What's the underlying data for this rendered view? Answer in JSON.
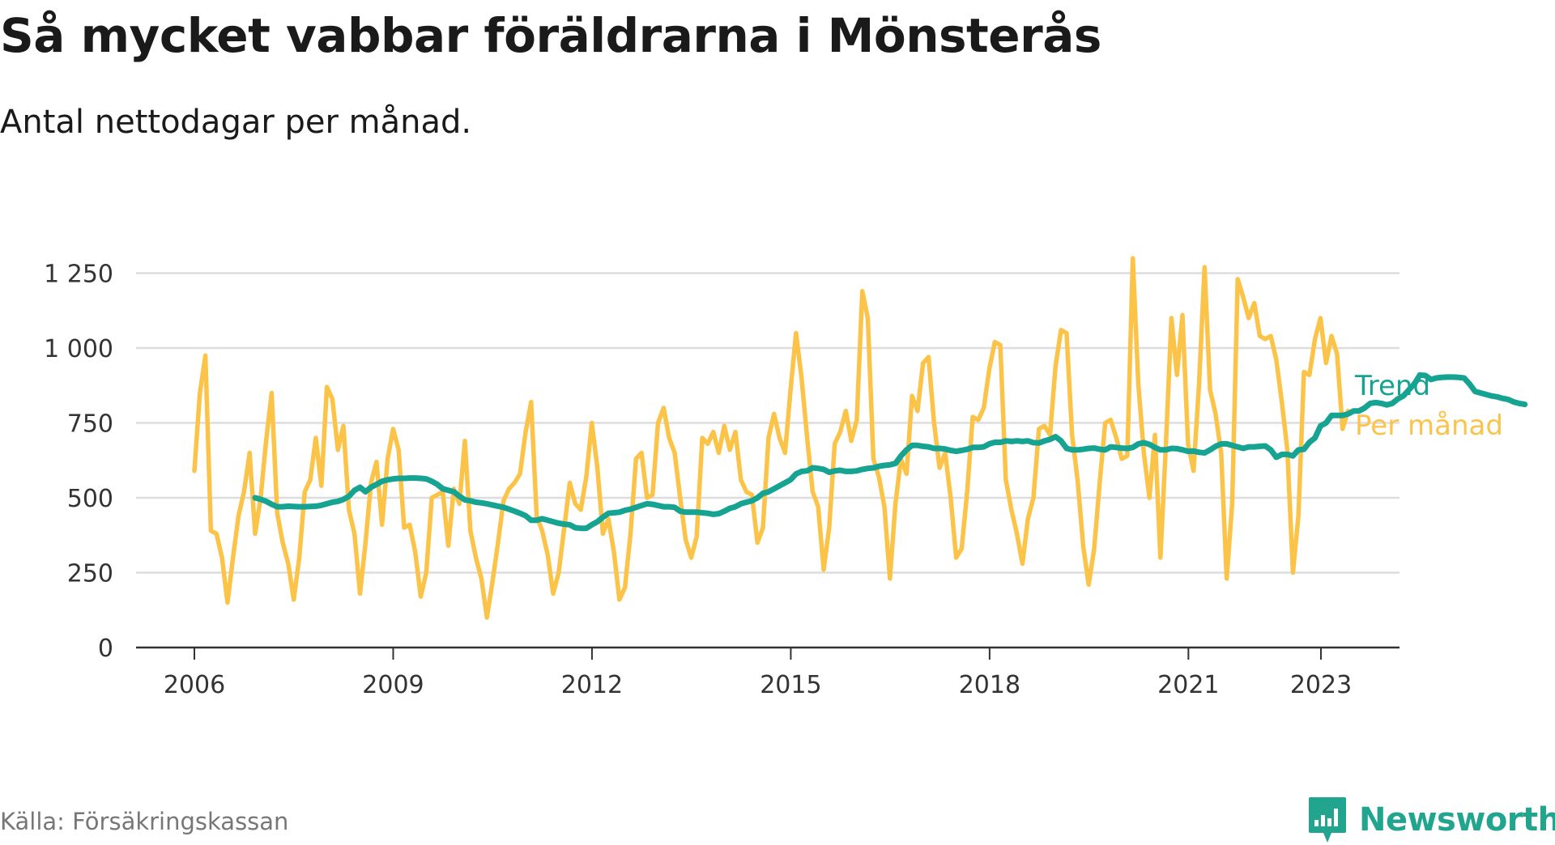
{
  "title": "Så mycket vabbar föräldrarna i Mönsterås",
  "subtitle": "Antal nettodagar per månad.",
  "source": "Källa: Försäkringskassan",
  "brand": {
    "name": "Newsworthy",
    "icon": "newsworthy-logo-icon",
    "color": "#22a58e"
  },
  "colors": {
    "per_month": "#fcc349",
    "trend": "#16a391",
    "grid": "#dddddd",
    "axis": "#333333"
  },
  "chart_data": {
    "type": "line",
    "xlim": [
      2006,
      2024.1
    ],
    "ylim": [
      0,
      1300
    ],
    "x_ticks": [
      {
        "value": 2006,
        "label": "2006"
      },
      {
        "value": 2009,
        "label": "2009"
      },
      {
        "value": 2012,
        "label": "2012"
      },
      {
        "value": 2015,
        "label": "2015"
      },
      {
        "value": 2018,
        "label": "2018"
      },
      {
        "value": 2021,
        "label": "2021"
      },
      {
        "value": 2023,
        "label": "2023"
      }
    ],
    "y_ticks": [
      {
        "value": 0,
        "label": "0"
      },
      {
        "value": 250,
        "label": "250"
      },
      {
        "value": 500,
        "label": "500"
      },
      {
        "value": 750,
        "label": "750"
      },
      {
        "value": 1000,
        "label": "1 000"
      },
      {
        "value": 1250,
        "label": "1 250"
      }
    ],
    "grid": true,
    "series": [
      {
        "name": "Per månad",
        "start": 2006.0,
        "step": 0.0833,
        "values": [
          590,
          850,
          975,
          390,
          380,
          300,
          150,
          300,
          440,
          520,
          650,
          380,
          500,
          690,
          850,
          450,
          350,
          280,
          160,
          300,
          520,
          560,
          700,
          540,
          870,
          830,
          660,
          740,
          460,
          380,
          180,
          350,
          550,
          620,
          410,
          630,
          730,
          660,
          400,
          410,
          320,
          170,
          250,
          500,
          510,
          520,
          340,
          530,
          480,
          690,
          390,
          300,
          230,
          100,
          220,
          350,
          490,
          530,
          550,
          580,
          720,
          820,
          440,
          390,
          310,
          180,
          250,
          400,
          550,
          480,
          460,
          570,
          750,
          600,
          380,
          430,
          320,
          160,
          200,
          380,
          630,
          650,
          500,
          510,
          750,
          800,
          700,
          650,
          500,
          360,
          300,
          370,
          700,
          680,
          720,
          650,
          740,
          660,
          720,
          560,
          520,
          510,
          350,
          400,
          700,
          780,
          700,
          650,
          860,
          1050,
          900,
          700,
          520,
          470,
          260,
          400,
          680,
          720,
          790,
          690,
          760,
          1190,
          1100,
          630,
          570,
          470,
          230,
          480,
          630,
          580,
          840,
          790,
          950,
          970,
          750,
          600,
          650,
          500,
          300,
          330,
          520,
          770,
          760,
          800,
          930,
          1020,
          1010,
          560,
          460,
          380,
          280,
          430,
          500,
          730,
          740,
          710,
          940,
          1060,
          1050,
          710,
          560,
          340,
          210,
          330,
          550,
          750,
          760,
          700,
          630,
          640,
          1300,
          880,
          650,
          500,
          710,
          300,
          680,
          1100,
          910,
          1110,
          680,
          590,
          880,
          1270,
          860,
          780,
          650,
          230,
          480,
          1230,
          1170,
          1100,
          1150,
          1040,
          1030,
          1040,
          960,
          820,
          660,
          250,
          440,
          920,
          910,
          1030,
          1100,
          950,
          1040,
          980,
          730,
          790
        ]
      },
      {
        "name": "Trend",
        "start": 2006.9167,
        "step": 0.0833,
        "values": [
          500,
          495,
          488,
          478,
          470,
          470,
          472,
          471,
          470,
          470,
          471,
          472,
          475,
          480,
          485,
          488,
          495,
          505,
          525,
          535,
          520,
          535,
          545,
          555,
          560,
          563,
          565,
          565,
          566,
          566,
          565,
          563,
          555,
          545,
          530,
          525,
          520,
          505,
          493,
          490,
          485,
          483,
          480,
          476,
          472,
          468,
          462,
          455,
          448,
          440,
          425,
          425,
          430,
          425,
          420,
          415,
          412,
          410,
          400,
          398,
          398,
          410,
          420,
          435,
          448,
          450,
          452,
          458,
          462,
          468,
          474,
          480,
          478,
          474,
          470,
          470,
          468,
          455,
          452,
          452,
          452,
          450,
          448,
          445,
          447,
          455,
          465,
          470,
          480,
          485,
          490,
          500,
          515,
          520,
          530,
          540,
          550,
          560,
          580,
          588,
          590,
          600,
          598,
          595,
          585,
          590,
          592,
          588,
          588,
          590,
          595,
          598,
          600,
          605,
          608,
          610,
          615,
          640,
          660,
          675,
          675,
          672,
          670,
          665,
          665,
          663,
          658,
          655,
          658,
          662,
          668,
          668,
          670,
          680,
          685,
          685,
          690,
          688,
          690,
          688,
          690,
          684,
          683,
          690,
          695,
          704,
          690,
          665,
          660,
          660,
          662,
          665,
          666,
          662,
          660,
          670,
          668,
          666,
          665,
          668,
          680,
          684,
          678,
          668,
          660,
          660,
          665,
          664,
          660,
          655,
          656,
          652,
          650,
          660,
          672,
          680,
          680,
          675,
          670,
          665,
          670,
          670,
          672,
          673,
          660,
          635,
          645,
          645,
          640,
          660,
          662,
          685,
          700,
          740,
          750,
          775,
          775,
          775,
          780,
          790,
          790,
          800,
          815,
          818,
          815,
          810,
          815,
          830,
          840,
          860,
          880,
          910,
          908,
          895,
          900,
          902,
          903,
          903,
          902,
          900,
          880,
          855,
          850,
          845,
          840,
          837,
          832,
          828,
          820,
          815,
          812
        ]
      }
    ],
    "legend": [
      {
        "label": "Trend",
        "series": "Trend",
        "color": "#16a391"
      },
      {
        "label": "Per månad",
        "series": "Per månad",
        "color": "#fcc349"
      }
    ],
    "legend_position": "right, at line ends"
  }
}
